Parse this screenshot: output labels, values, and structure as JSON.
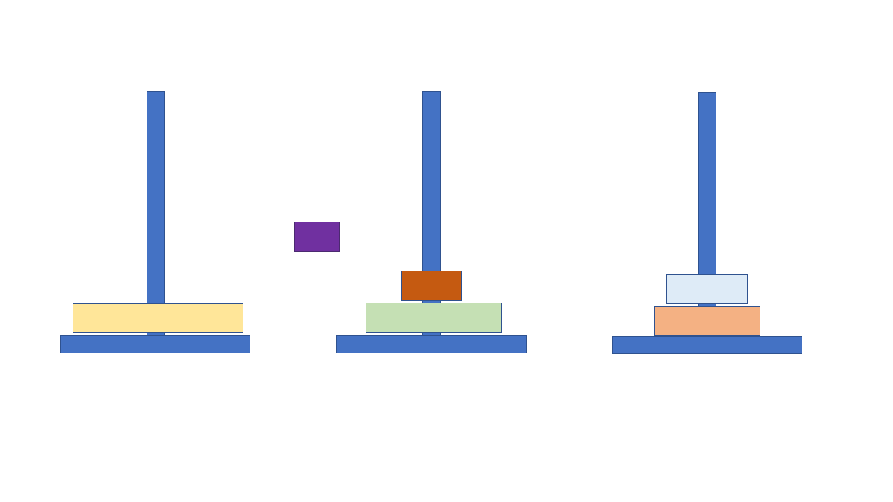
{
  "game": {
    "name": "Tower of Hanoi",
    "colors": {
      "peg": "#4472c4",
      "base": "#4472c4",
      "disk_yellow": "#ffe699",
      "disk_green": "#c5e0b4",
      "disk_orange_dark": "#c55a11",
      "disk_light_blue": "#deebf7",
      "disk_peach": "#f4b183",
      "disk_purple": "#7030a0"
    },
    "towers": [
      {
        "id": "left",
        "disks": [
          "yellow"
        ]
      },
      {
        "id": "middle",
        "disks": [
          "green",
          "orange-dark"
        ]
      },
      {
        "id": "right",
        "disks": [
          "peach",
          "light-blue"
        ]
      }
    ],
    "held_disk": "purple"
  }
}
